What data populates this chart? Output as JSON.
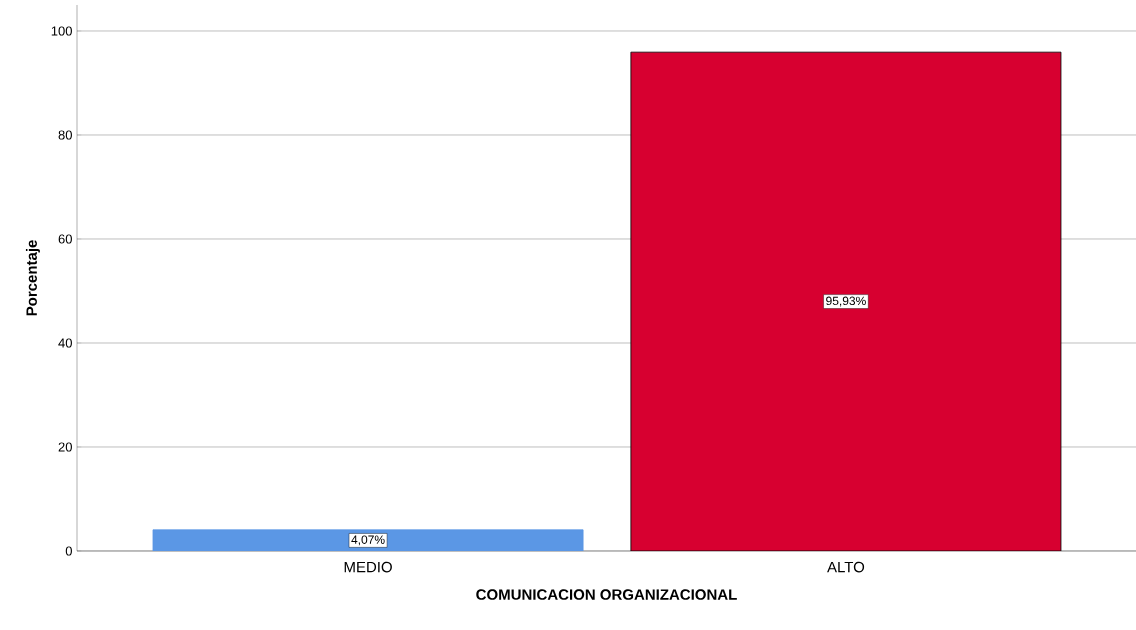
{
  "chart_data": {
    "type": "bar",
    "xlabel": "COMUNICACION ORGANIZACIONAL",
    "ylabel": "Porcentaje",
    "categories": [
      "MEDIO",
      "ALTO"
    ],
    "values": [
      4.07,
      95.93
    ],
    "colors": [
      "#5b97e5",
      "#d70030"
    ],
    "value_labels": [
      "4,07%",
      "95,93%"
    ],
    "ylim": [
      0,
      105
    ],
    "yticks": [
      0,
      20,
      40,
      60,
      80,
      100
    ],
    "grid": "y"
  }
}
